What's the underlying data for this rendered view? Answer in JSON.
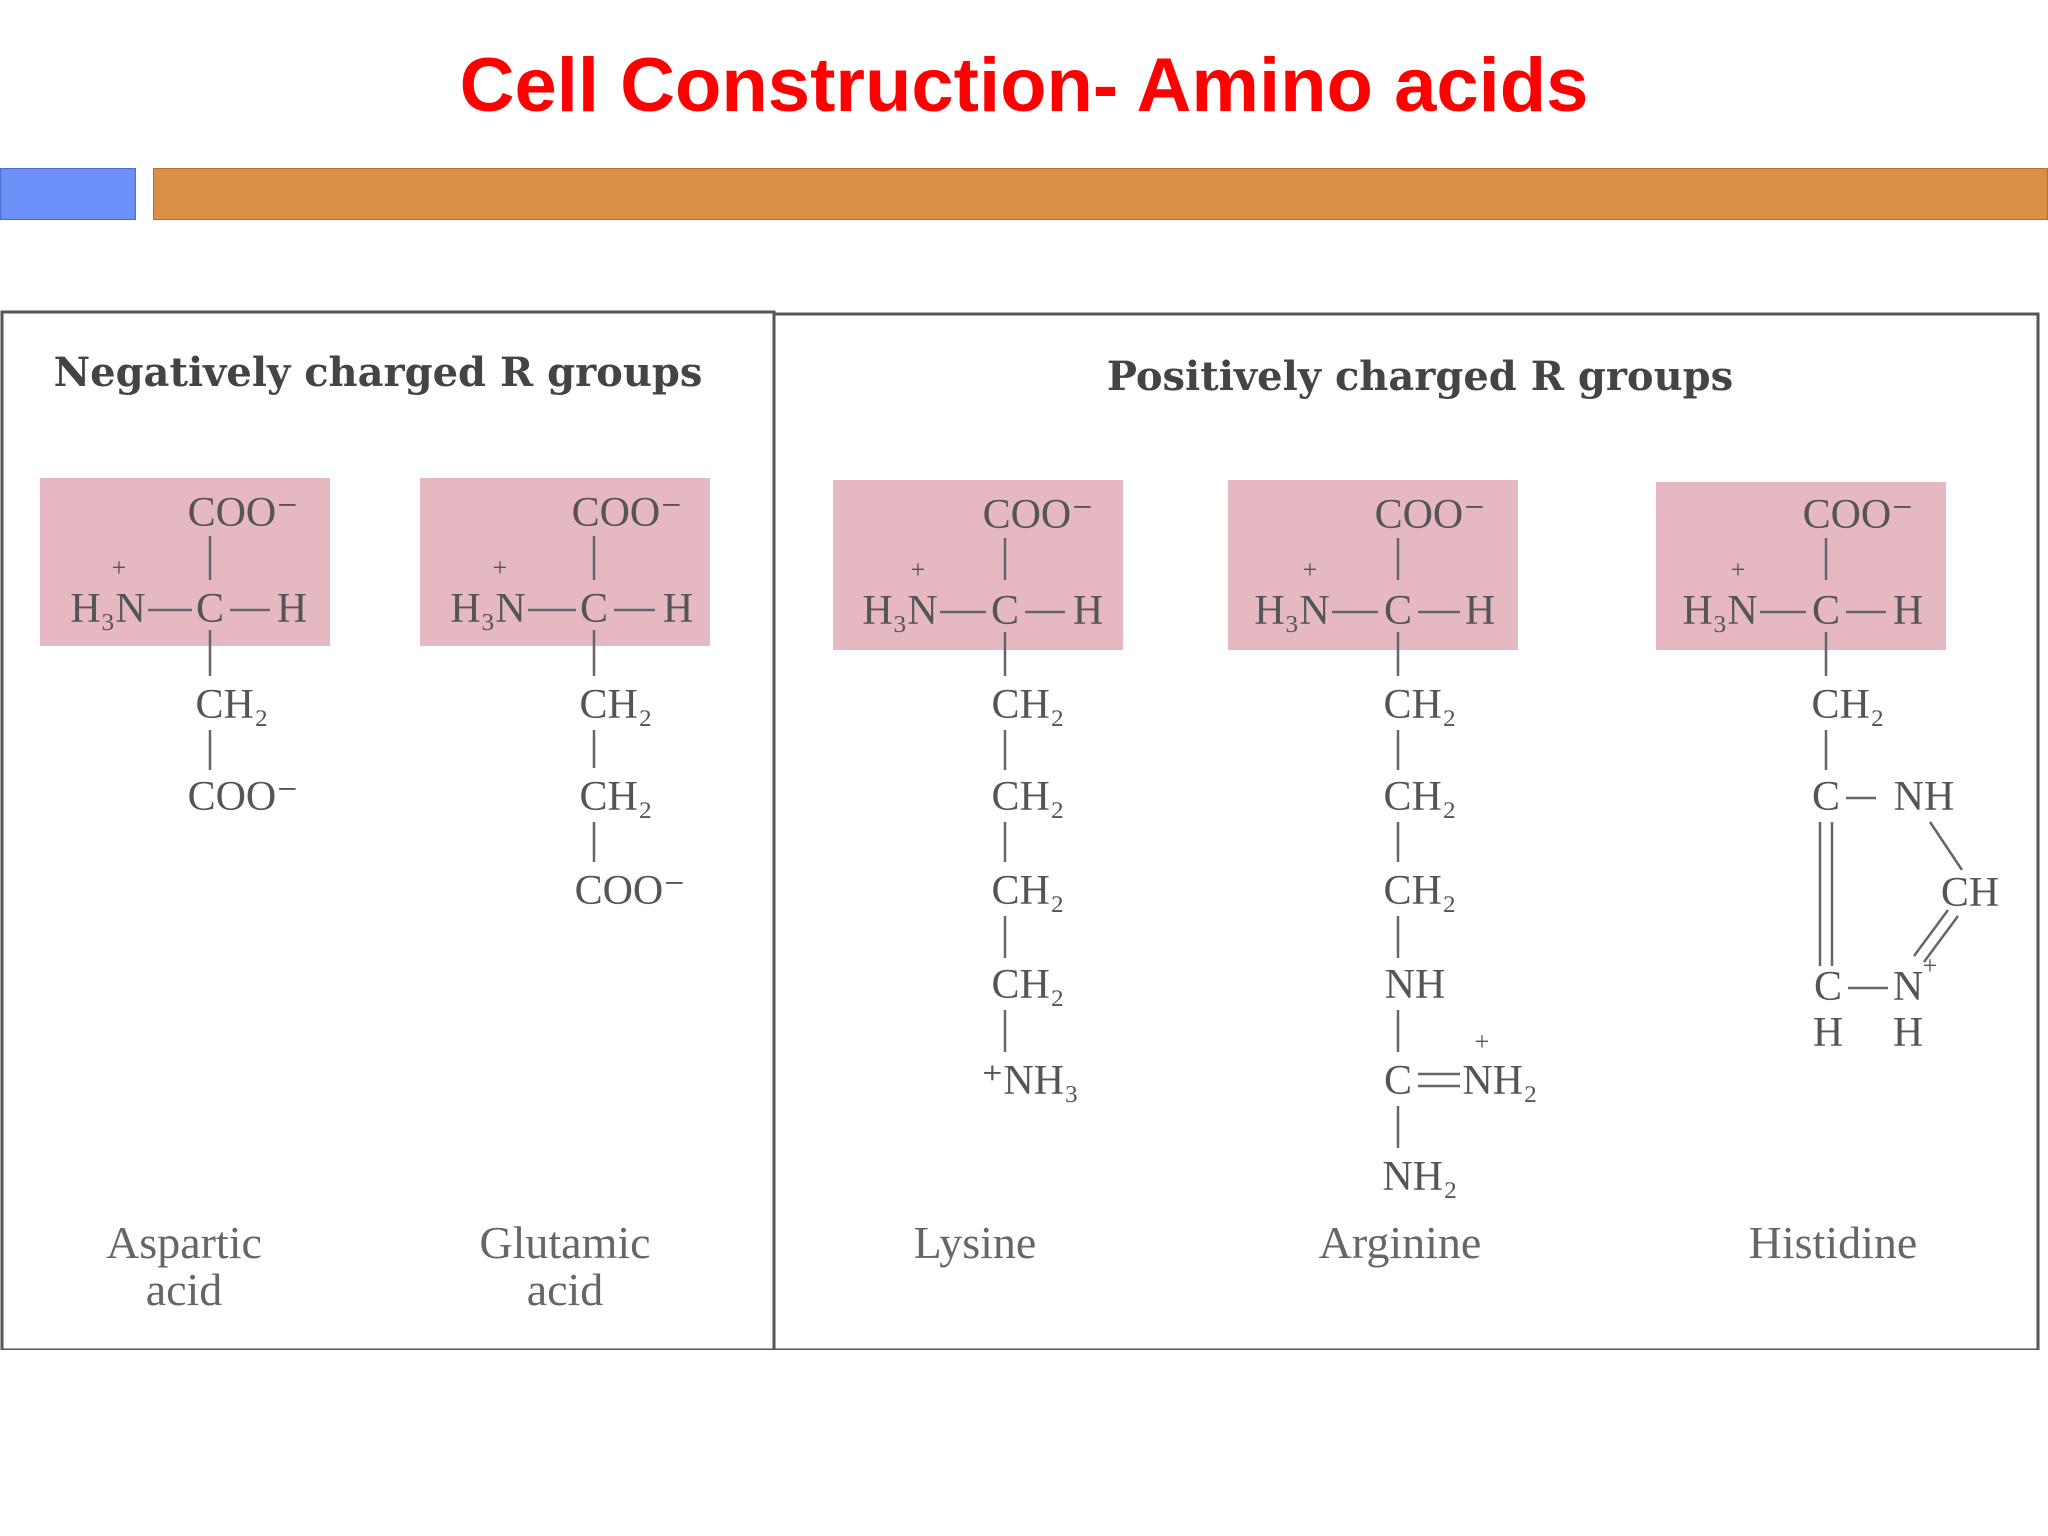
{
  "slide": {
    "title": "Cell Construction- Amino acids",
    "colors": {
      "title": "#ff0000",
      "accent_blue": "#6b8ff7",
      "accent_orange": "#d98f46",
      "backbone_highlight": "#e6b8c2"
    }
  },
  "figure": {
    "negative_header": "Negatively charged R groups",
    "positive_header": "Positively charged R groups",
    "backbone": {
      "carboxylate": "COO⁻",
      "amino_group": "H₃N",
      "alpha_carbon": "C",
      "hydrogen": "H",
      "charge": "+"
    },
    "aa": {
      "aspartic": {
        "name_line1": "Aspartic",
        "name_line2": "acid",
        "side_chain": [
          "CH₂",
          "COO⁻"
        ]
      },
      "glutamic": {
        "name_line1": "Glutamic",
        "name_line2": "acid",
        "side_chain": [
          "CH₂",
          "CH₂",
          "COO⁻"
        ]
      },
      "lysine": {
        "name": "Lysine",
        "side_chain": [
          "CH₂",
          "CH₂",
          "CH₂",
          "CH₂",
          "⁺NH₃"
        ]
      },
      "arginine": {
        "name": "Arginine",
        "side_chain": [
          "CH₂",
          "CH₂",
          "CH₂",
          "NH",
          "C",
          "NH₂",
          "NH₂"
        ]
      },
      "histidine": {
        "name": "Histidine",
        "side_chain": [
          "CH₂",
          "C",
          "NH",
          "CH",
          "C",
          "N",
          "H",
          "H"
        ]
      }
    }
  }
}
